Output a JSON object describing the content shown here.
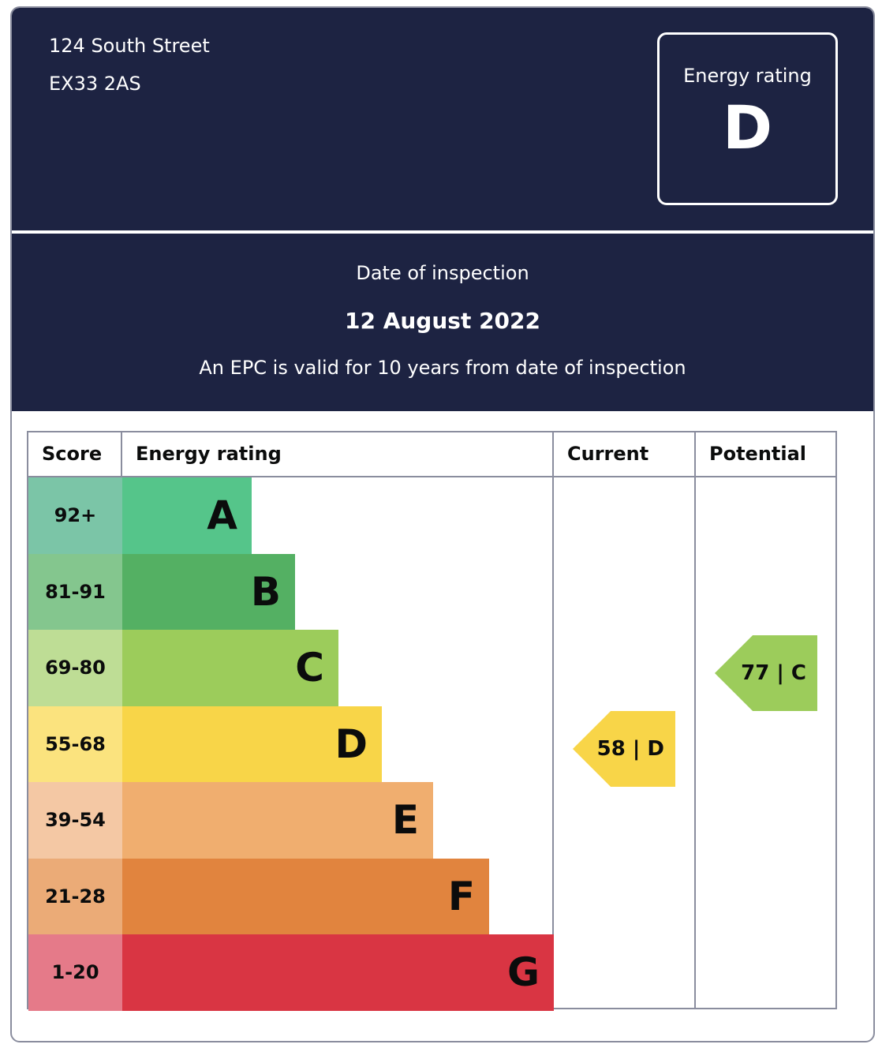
{
  "address": {
    "line1": "124 South Street",
    "line2": "EX33 2AS"
  },
  "rating_box": {
    "label": "Energy rating",
    "value": "D"
  },
  "inspection": {
    "label": "Date of inspection",
    "date": "12 August 2022",
    "validity": "An EPC is valid for 10 years from date of inspection"
  },
  "table": {
    "headers": [
      "Score",
      "Energy rating",
      "Current",
      "Potential"
    ],
    "rows": [
      {
        "score": "92+",
        "band": "A",
        "score_color": "#7bc5a7",
        "band_color": "#55c58a"
      },
      {
        "score": "81-91",
        "band": "B",
        "score_color": "#84c68e",
        "band_color": "#54b063"
      },
      {
        "score": "69-80",
        "band": "C",
        "score_color": "#bedd95",
        "band_color": "#9ccc5b"
      },
      {
        "score": "55-68",
        "band": "D",
        "score_color": "#fbe37e",
        "band_color": "#f8d548"
      },
      {
        "score": "39-54",
        "band": "E",
        "score_color": "#f4c8a4",
        "band_color": "#f0ae6f"
      },
      {
        "score": "21-28",
        "band": "F",
        "score_color": "#ebab77",
        "band_color": "#e1843e"
      },
      {
        "score": "1-20",
        "band": "G",
        "score_color": "#e57a89",
        "band_color": "#d93543"
      }
    ]
  },
  "current": {
    "score": "58",
    "band": "D",
    "label": "58 | D",
    "color": "#f8d548"
  },
  "potential": {
    "score": "77",
    "band": "C",
    "label": "77 | C",
    "color": "#9ccc5b"
  }
}
